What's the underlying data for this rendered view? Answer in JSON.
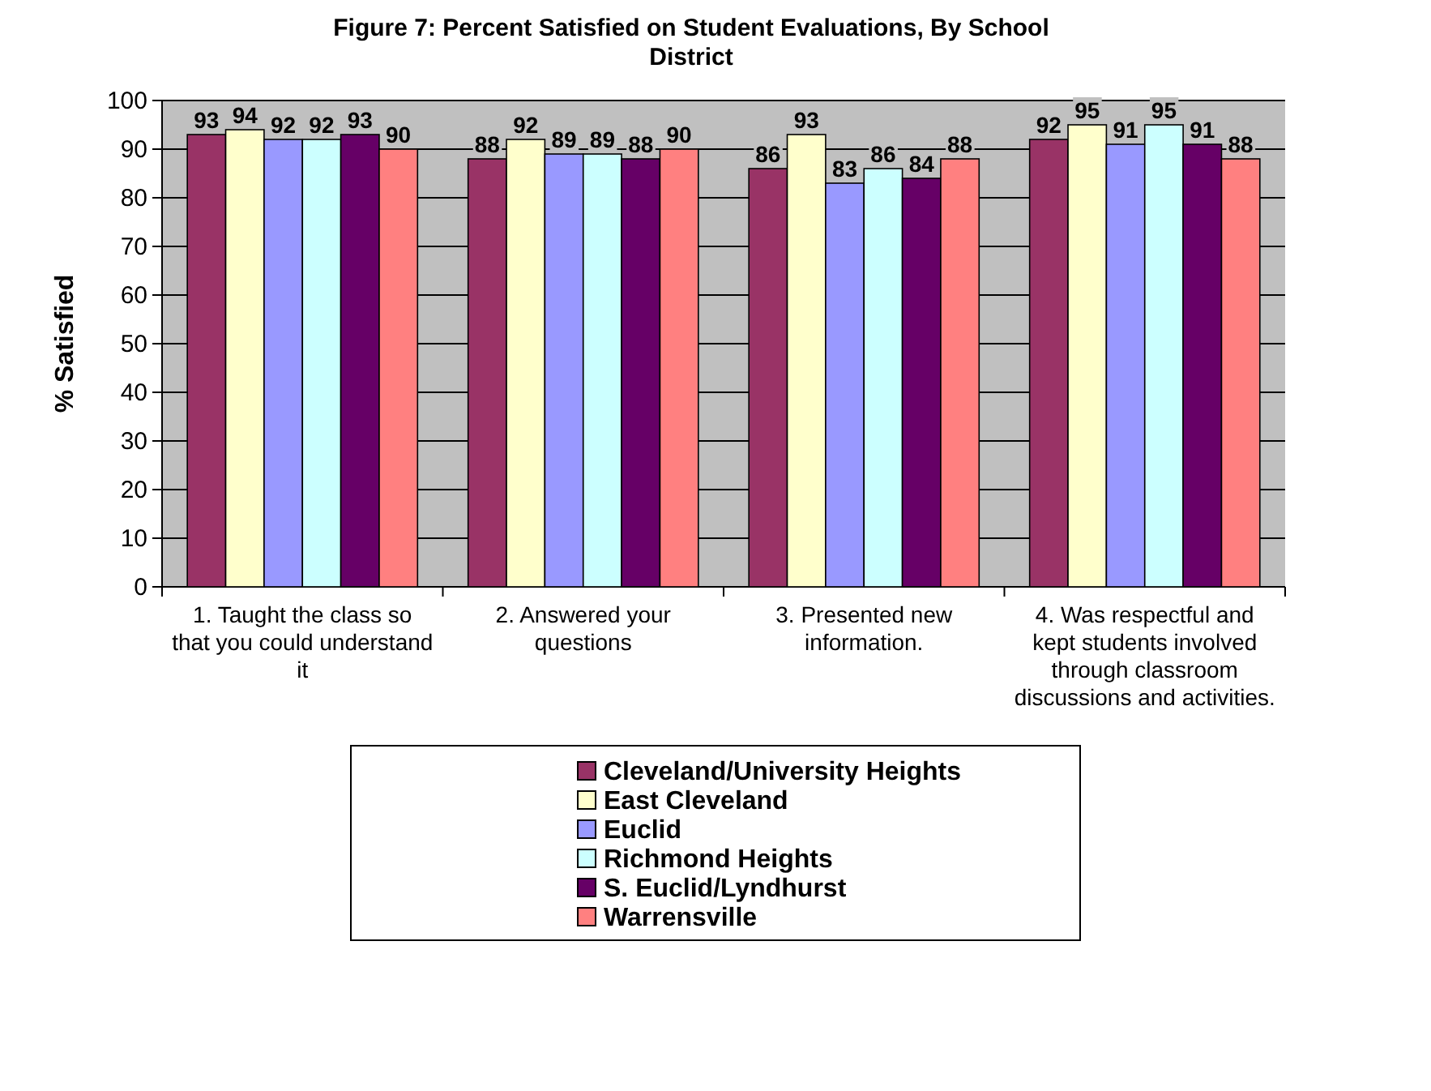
{
  "chart_data": {
    "type": "bar",
    "title": "Figure 7: Percent Satisfied on Student Evaluations, By School District",
    "ylabel": "% Satisfied",
    "categories": [
      "1. Taught the class so that you could understand it",
      "2. Answered your questions",
      "3. Presented new information.",
      "4. Was respectful and kept students involved through classroom discussions and activities."
    ],
    "series": [
      {
        "name": "Cleveland/University Heights",
        "color": "#993366",
        "values": [
          93,
          88,
          86,
          92
        ]
      },
      {
        "name": "East Cleveland",
        "color": "#ffffcc",
        "values": [
          94,
          92,
          93,
          95
        ]
      },
      {
        "name": "Euclid",
        "color": "#9999ff",
        "values": [
          92,
          89,
          83,
          91
        ]
      },
      {
        "name": "Richmond Heights",
        "color": "#ccffff",
        "values": [
          92,
          89,
          86,
          95
        ]
      },
      {
        "name": "S. Euclid/Lyndhurst",
        "color": "#660066",
        "values": [
          93,
          88,
          84,
          91
        ]
      },
      {
        "name": "Warrensville",
        "color": "#ff8080",
        "values": [
          90,
          90,
          88,
          88
        ]
      }
    ],
    "ylim": [
      0,
      100
    ],
    "yticks": [
      0,
      10,
      20,
      30,
      40,
      50,
      60,
      70,
      80,
      90,
      100
    ],
    "grid": "y",
    "legend": "bottom",
    "data_labels": true
  }
}
